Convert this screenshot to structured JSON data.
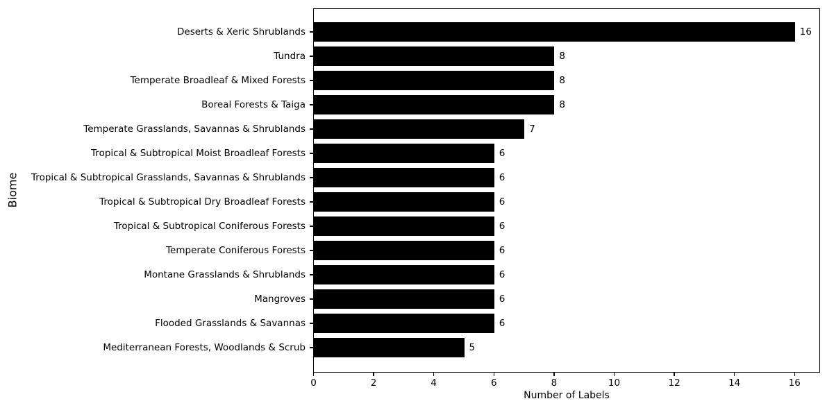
{
  "chart_data": {
    "type": "bar",
    "orientation": "horizontal",
    "title": "",
    "xlabel": "Number of Labels",
    "ylabel": "Biome",
    "categories": [
      "Deserts & Xeric Shrublands",
      "Tundra",
      "Temperate Broadleaf & Mixed Forests",
      "Boreal Forests & Taiga",
      "Temperate Grasslands, Savannas & Shrublands",
      "Tropical & Subtropical Moist Broadleaf Forests",
      "Tropical & Subtropical Grasslands, Savannas & Shrublands",
      "Tropical & Subtropical Dry Broadleaf Forests",
      "Tropical & Subtropical Coniferous Forests",
      "Temperate Coniferous Forests",
      "Montane Grasslands & Shrublands",
      "Mangroves",
      "Flooded Grasslands & Savannas",
      "Mediterranean Forests, Woodlands & Scrub"
    ],
    "values": [
      16,
      8,
      8,
      8,
      7,
      6,
      6,
      6,
      6,
      6,
      6,
      6,
      6,
      5
    ],
    "bar_labels": [
      "16",
      "8",
      "8",
      "8",
      "7",
      "6",
      "6",
      "6",
      "6",
      "6",
      "6",
      "6",
      "6",
      "5"
    ],
    "xticks": [
      0,
      2,
      4,
      6,
      8,
      10,
      12,
      14,
      16
    ],
    "xlim": [
      0,
      16.8
    ],
    "bar_color": "#000000",
    "text_color": "#000000",
    "background_color": "#ffffff",
    "grid": false,
    "legend": null
  }
}
